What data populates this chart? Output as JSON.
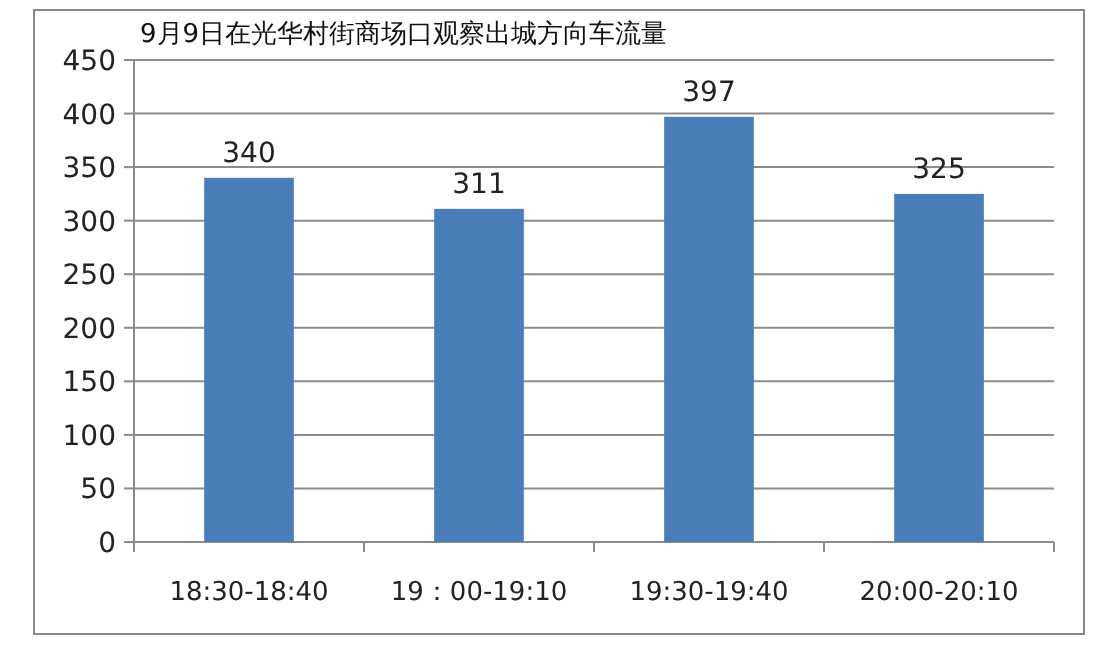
{
  "chart_data": {
    "type": "bar",
    "title": "9月9日在光华村街商场口观察出城方向车流量",
    "categories": [
      "18:30-18:40",
      "19：00-19:10",
      "19:30-19:40",
      "20:00-20:10"
    ],
    "values": [
      340,
      311,
      397,
      325
    ],
    "color": "#4a7ebb",
    "ylim": [
      0,
      450
    ],
    "yticks": [
      0,
      50,
      100,
      150,
      200,
      250,
      300,
      350,
      400,
      450
    ],
    "grid": "y",
    "data_labels": true
  }
}
